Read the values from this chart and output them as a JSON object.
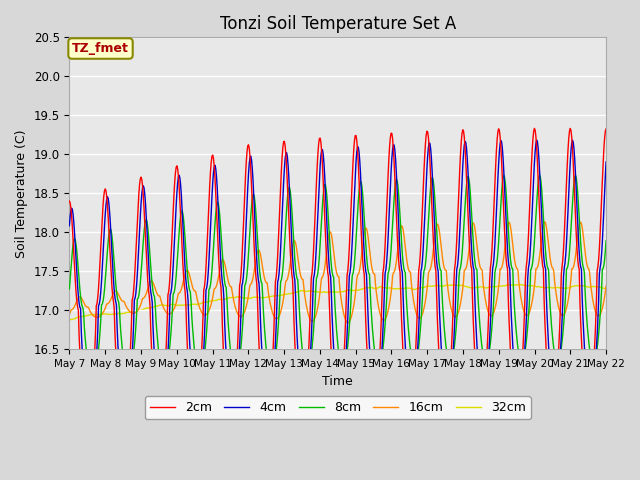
{
  "title": "Tonzi Soil Temperature Set A",
  "xlabel": "Time",
  "ylabel": "Soil Temperature (C)",
  "ylim": [
    16.5,
    20.5
  ],
  "bg_color": "#d8d8d8",
  "plot_bg_color": "#e8e8e8",
  "annotation_text": "TZ_fmet",
  "annotation_bg": "#ffffcc",
  "annotation_fg": "#aa0000",
  "annotation_border": "#888800",
  "legend_labels": [
    "2cm",
    "4cm",
    "8cm",
    "16cm",
    "32cm"
  ],
  "legend_colors": [
    "#ff0000",
    "#0000cc",
    "#00bb00",
    "#ff8800",
    "#dddd00"
  ],
  "tick_labels": [
    "May 7",
    "May 8",
    "May 9",
    "May 10",
    "May 11",
    "May 12",
    "May 13",
    "May 14",
    "May 15",
    "May 16",
    "May 17",
    "May 18",
    "May 19",
    "May 20",
    "May 21",
    "May 22"
  ],
  "title_fontsize": 12,
  "label_fontsize": 9,
  "n_days": 15
}
